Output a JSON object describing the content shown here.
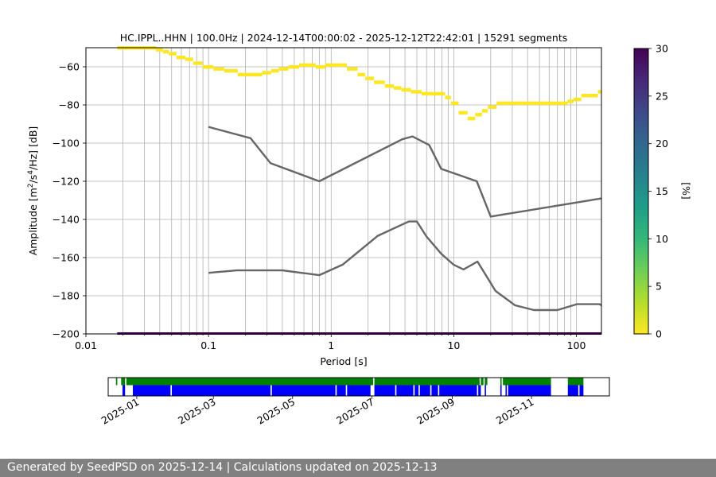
{
  "footer": {
    "text": "Generated by SeedPSD on 2025-12-14 | Calculations updated on 2025-12-13"
  },
  "colors": {
    "grid": "#b0b0b0",
    "noise_model": "#666666",
    "coverage_green": "#008000",
    "coverage_blue": "#0000ff",
    "colormap": [
      "#fde725",
      "#b5de2b",
      "#6ece58",
      "#35b779",
      "#1f9e89",
      "#26828e",
      "#31688e",
      "#3e4989",
      "#482878",
      "#440154"
    ]
  },
  "chart_data": [
    {
      "type": "heatmap",
      "subtype": "probabilistic-psd",
      "title": "HC.IPPL..HHN | 100.0Hz | 2024-12-14T00:00:02 - 2025-12-12T22:42:01 | 15291 segments",
      "xlabel": "Period [s]",
      "ylabel": "Amplitude [m²/s⁴/Hz] [dB]",
      "xscale": "log",
      "xlim": [
        0.01,
        160
      ],
      "ylim": [
        -200,
        -50
      ],
      "xticks": [
        0.01,
        0.1,
        1,
        10,
        100
      ],
      "xtick_labels": [
        "0.01",
        "0.1",
        "1",
        "10",
        "100"
      ],
      "yticks": [
        -60,
        -80,
        -100,
        -120,
        -140,
        -160,
        -180,
        -200
      ],
      "ytick_labels": [
        "−60",
        "−80",
        "−100",
        "−120",
        "−140",
        "−160",
        "−180",
        "−200"
      ],
      "grid": true,
      "colorbar": {
        "label": "[%]",
        "range": [
          0,
          30
        ],
        "ticks": [
          0,
          5,
          10,
          15,
          20,
          25,
          30
        ],
        "tick_labels": [
          "0",
          "5",
          "10",
          "15",
          "20",
          "25",
          "30"
        ]
      },
      "psd_mode": {
        "period": [
          0.018,
          0.02,
          0.025,
          0.03,
          0.035,
          0.04,
          0.045,
          0.05,
          0.06,
          0.07,
          0.08,
          0.1,
          0.12,
          0.15,
          0.2,
          0.25,
          0.3,
          0.35,
          0.4,
          0.5,
          0.6,
          0.7,
          0.8,
          1.0,
          1.2,
          1.5,
          1.8,
          2.0,
          2.5,
          3.0,
          3.5,
          4.0,
          5.0,
          6.0,
          7.0,
          8.0,
          9.0,
          10.0,
          12.0,
          14.0,
          16.0,
          18.0,
          20.0,
          25.0,
          30.0,
          40.0,
          50.0,
          60.0,
          70.0,
          80.0,
          90.0,
          100.0,
          120.0,
          140.0,
          160.0
        ],
        "db": [
          -50,
          -50,
          -50,
          -50,
          -50,
          -51,
          -52,
          -53,
          -55,
          -56,
          -58,
          -60,
          -61,
          -62,
          -64,
          -64,
          -63,
          -62,
          -61,
          -60,
          -59,
          -59,
          -60,
          -59,
          -59,
          -61,
          -64,
          -66,
          -68,
          -70,
          -71,
          -72,
          -73,
          -74,
          -74,
          -74,
          -76,
          -79,
          -84,
          -87,
          -85,
          -83,
          -81,
          -79,
          -79,
          -79,
          -79,
          -79,
          -79,
          -79,
          -78,
          -77,
          -75,
          -75,
          -73
        ],
        "probability_pct": 1
      },
      "noise_models": [
        {
          "name": "",
          "period": [
            0.1,
            0.17,
            0.4,
            0.8,
            1.24,
            2.4,
            4.3,
            5.0,
            6.0,
            7.9,
            10.0,
            12.0,
            15.6,
            21.9,
            31.6,
            45.0,
            70.0,
            101.0,
            154.0,
            160.0
          ],
          "db": [
            -168,
            -166.7,
            -166.7,
            -169.2,
            -163.7,
            -148.6,
            -141.1,
            -141.1,
            -149.0,
            -158.0,
            -163.8,
            -166.2,
            -162.1,
            -177.5,
            -185.0,
            -187.5,
            -187.5,
            -184.4,
            -184.4,
            -185.0
          ]
        },
        {
          "name": "",
          "period": [
            0.1,
            0.22,
            0.32,
            0.8,
            3.8,
            4.6,
            6.3,
            7.9,
            15.4,
            20.0,
            160.0
          ],
          "db": [
            -91.5,
            -97.4,
            -110.5,
            -120.0,
            -98.0,
            -96.5,
            -101.0,
            -113.5,
            -120.0,
            -138.5,
            -129.0
          ]
        }
      ]
    },
    {
      "type": "timeline",
      "subtype": "data-coverage",
      "xlim": [
        "2024-12-10",
        "2025-12-31"
      ],
      "xtick_labels": [
        "2025-01",
        "2025-03",
        "2025-05",
        "2025-07",
        "2025-09",
        "2025-11"
      ],
      "xtick_dates": [
        "2025-01-01",
        "2025-03-01",
        "2025-05-01",
        "2025-07-01",
        "2025-09-01",
        "2025-11-01"
      ],
      "green_intervals": [
        [
          "2024-12-16",
          "2024-12-17"
        ],
        [
          "2024-12-20",
          "2024-12-23"
        ],
        [
          "2024-12-24",
          "2025-07-02"
        ],
        [
          "2025-07-03",
          "2025-09-22"
        ],
        [
          "2025-09-23",
          "2025-09-25"
        ],
        [
          "2025-09-26",
          "2025-09-28"
        ],
        [
          "2025-10-08",
          "2025-10-09"
        ],
        [
          "2025-10-10",
          "2025-11-16"
        ],
        [
          "2025-11-29",
          "2025-12-11"
        ]
      ],
      "blue_intervals": [
        [
          "2024-12-21",
          "2024-12-23"
        ],
        [
          "2024-12-29",
          "2025-01-27"
        ],
        [
          "2025-01-28",
          "2025-04-14"
        ],
        [
          "2025-04-15",
          "2025-06-03"
        ],
        [
          "2025-06-04",
          "2025-06-11"
        ],
        [
          "2025-06-12",
          "2025-06-30"
        ],
        [
          "2025-07-03",
          "2025-07-19"
        ],
        [
          "2025-07-20",
          "2025-08-02"
        ],
        [
          "2025-08-03",
          "2025-08-06"
        ],
        [
          "2025-08-07",
          "2025-08-15"
        ],
        [
          "2025-08-16",
          "2025-08-21"
        ],
        [
          "2025-08-22",
          "2025-09-20"
        ],
        [
          "2025-09-21",
          "2025-09-23"
        ],
        [
          "2025-09-26",
          "2025-09-27"
        ],
        [
          "2025-10-08",
          "2025-10-09"
        ],
        [
          "2025-10-12",
          "2025-10-13"
        ],
        [
          "2025-10-14",
          "2025-11-16"
        ],
        [
          "2025-11-29",
          "2025-12-07"
        ],
        [
          "2025-12-08",
          "2025-12-11"
        ]
      ]
    }
  ]
}
